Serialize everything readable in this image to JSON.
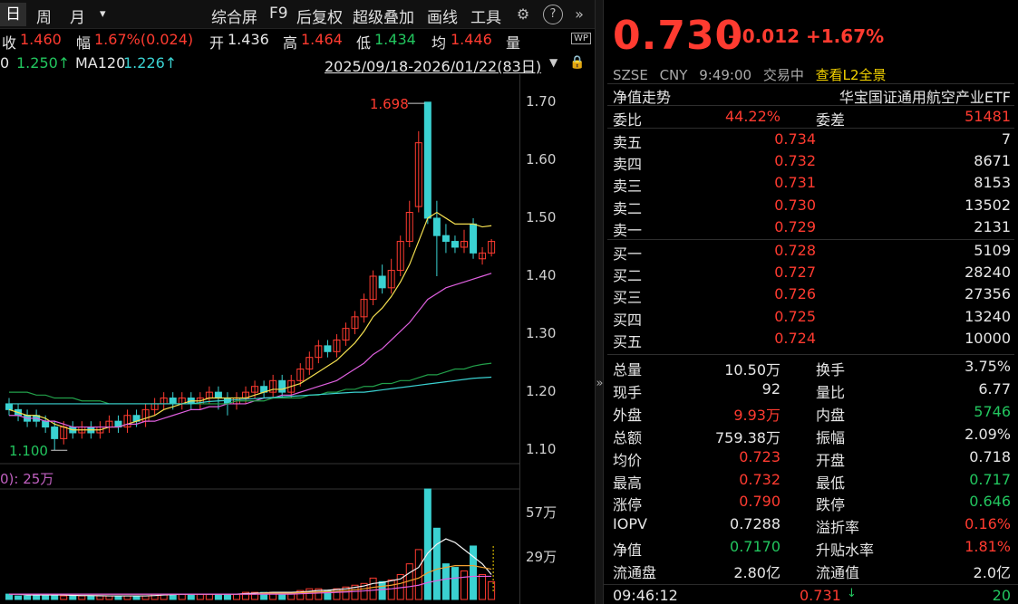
{
  "toolbar": {
    "day": "日",
    "week": "周",
    "month": "月",
    "dropdown": "▾",
    "composite": "综合屏",
    "f9": "F9",
    "adjust": "后复权",
    "overlay": "超级叠加",
    "draw": "画线",
    "tools": "工具",
    "gear_icon": "gear-icon",
    "help_icon": "help-icon",
    "more_icon": "double-chevron-right-icon"
  },
  "quote": {
    "close_label": "收",
    "close": "1.460",
    "range_label": "幅",
    "range": "1.67%(0.024)",
    "open_label": "开",
    "open": "1.436",
    "high_label": "高",
    "high": "1.464",
    "low_label": "低",
    "low": "1.434",
    "avg_label": "均",
    "avg": "1.446",
    "vol_label": "量",
    "wp_badge": "WP"
  },
  "ma": {
    "ma_a_label": "0",
    "ma_a": "1.250↑",
    "ma120_label": "MA120",
    "ma120": "1.226↑",
    "date_range": "2025/09/18-2026/01/22(83日)"
  },
  "chart": {
    "price_high_label": "1.698",
    "price_low_label": "1.100",
    "vol_title": "0): 25万",
    "yticks": [
      "1.70",
      "1.60",
      "1.50",
      "1.40",
      "1.30",
      "1.20",
      "1.10"
    ],
    "vol_ticks": [
      "57万",
      "29万"
    ]
  },
  "chart_data": {
    "type": "candlestick",
    "title": "",
    "ylim": [
      1.08,
      1.72
    ],
    "candles": [
      {
        "o": 1.18,
        "c": 1.17,
        "h": 1.19,
        "l": 1.16
      },
      {
        "o": 1.17,
        "c": 1.16,
        "h": 1.18,
        "l": 1.15
      },
      {
        "o": 1.16,
        "c": 1.15,
        "h": 1.17,
        "l": 1.14
      },
      {
        "o": 1.16,
        "c": 1.15,
        "h": 1.17,
        "l": 1.14
      },
      {
        "o": 1.15,
        "c": 1.14,
        "h": 1.16,
        "l": 1.13
      },
      {
        "o": 1.14,
        "c": 1.12,
        "h": 1.15,
        "l": 1.1
      },
      {
        "o": 1.12,
        "c": 1.14,
        "h": 1.15,
        "l": 1.11
      },
      {
        "o": 1.14,
        "c": 1.13,
        "h": 1.15,
        "l": 1.12
      },
      {
        "o": 1.13,
        "c": 1.14,
        "h": 1.15,
        "l": 1.12
      },
      {
        "o": 1.14,
        "c": 1.13,
        "h": 1.15,
        "l": 1.12
      },
      {
        "o": 1.13,
        "c": 1.14,
        "h": 1.15,
        "l": 1.12
      },
      {
        "o": 1.14,
        "c": 1.15,
        "h": 1.16,
        "l": 1.13
      },
      {
        "o": 1.15,
        "c": 1.14,
        "h": 1.16,
        "l": 1.13
      },
      {
        "o": 1.14,
        "c": 1.16,
        "h": 1.17,
        "l": 1.13
      },
      {
        "o": 1.16,
        "c": 1.15,
        "h": 1.17,
        "l": 1.14
      },
      {
        "o": 1.15,
        "c": 1.17,
        "h": 1.18,
        "l": 1.14
      },
      {
        "o": 1.17,
        "c": 1.18,
        "h": 1.19,
        "l": 1.16
      },
      {
        "o": 1.18,
        "c": 1.19,
        "h": 1.2,
        "l": 1.17
      },
      {
        "o": 1.19,
        "c": 1.18,
        "h": 1.2,
        "l": 1.17
      },
      {
        "o": 1.18,
        "c": 1.19,
        "h": 1.2,
        "l": 1.17
      },
      {
        "o": 1.19,
        "c": 1.18,
        "h": 1.2,
        "l": 1.17
      },
      {
        "o": 1.18,
        "c": 1.19,
        "h": 1.2,
        "l": 1.17
      },
      {
        "o": 1.19,
        "c": 1.2,
        "h": 1.21,
        "l": 1.18
      },
      {
        "o": 1.2,
        "c": 1.19,
        "h": 1.21,
        "l": 1.17
      },
      {
        "o": 1.19,
        "c": 1.18,
        "h": 1.2,
        "l": 1.16
      },
      {
        "o": 1.18,
        "c": 1.19,
        "h": 1.2,
        "l": 1.17
      },
      {
        "o": 1.19,
        "c": 1.2,
        "h": 1.21,
        "l": 1.18
      },
      {
        "o": 1.2,
        "c": 1.21,
        "h": 1.22,
        "l": 1.19
      },
      {
        "o": 1.21,
        "c": 1.2,
        "h": 1.22,
        "l": 1.19
      },
      {
        "o": 1.2,
        "c": 1.22,
        "h": 1.23,
        "l": 1.19
      },
      {
        "o": 1.22,
        "c": 1.2,
        "h": 1.23,
        "l": 1.19
      },
      {
        "o": 1.2,
        "c": 1.22,
        "h": 1.23,
        "l": 1.19
      },
      {
        "o": 1.22,
        "c": 1.24,
        "h": 1.25,
        "l": 1.21
      },
      {
        "o": 1.24,
        "c": 1.26,
        "h": 1.27,
        "l": 1.23
      },
      {
        "o": 1.26,
        "c": 1.28,
        "h": 1.29,
        "l": 1.25
      },
      {
        "o": 1.28,
        "c": 1.27,
        "h": 1.29,
        "l": 1.26
      },
      {
        "o": 1.27,
        "c": 1.29,
        "h": 1.3,
        "l": 1.26
      },
      {
        "o": 1.29,
        "c": 1.31,
        "h": 1.32,
        "l": 1.28
      },
      {
        "o": 1.31,
        "c": 1.33,
        "h": 1.34,
        "l": 1.3
      },
      {
        "o": 1.33,
        "c": 1.36,
        "h": 1.37,
        "l": 1.32
      },
      {
        "o": 1.36,
        "c": 1.4,
        "h": 1.41,
        "l": 1.35
      },
      {
        "o": 1.4,
        "c": 1.38,
        "h": 1.42,
        "l": 1.37
      },
      {
        "o": 1.38,
        "c": 1.41,
        "h": 1.43,
        "l": 1.37
      },
      {
        "o": 1.41,
        "c": 1.46,
        "h": 1.47,
        "l": 1.4
      },
      {
        "o": 1.46,
        "c": 1.51,
        "h": 1.53,
        "l": 1.45
      },
      {
        "o": 1.52,
        "c": 1.63,
        "h": 1.65,
        "l": 1.51
      },
      {
        "o": 1.7,
        "c": 1.5,
        "h": 1.698,
        "l": 1.49
      },
      {
        "o": 1.5,
        "c": 1.47,
        "h": 1.53,
        "l": 1.4
      },
      {
        "o": 1.47,
        "c": 1.46,
        "h": 1.49,
        "l": 1.44
      },
      {
        "o": 1.46,
        "c": 1.45,
        "h": 1.47,
        "l": 1.44
      },
      {
        "o": 1.45,
        "c": 1.46,
        "h": 1.48,
        "l": 1.44
      },
      {
        "o": 1.49,
        "c": 1.44,
        "h": 1.5,
        "l": 1.43
      },
      {
        "o": 1.43,
        "c": 1.44,
        "h": 1.45,
        "l": 1.42
      },
      {
        "o": 1.44,
        "c": 1.46,
        "h": 1.464,
        "l": 1.434
      }
    ],
    "ma_lines": [
      {
        "color": "#f5e050",
        "values": [
          1.17,
          1.165,
          1.16,
          1.16,
          1.155,
          1.145,
          1.14,
          1.135,
          1.135,
          1.135,
          1.135,
          1.14,
          1.14,
          1.145,
          1.15,
          1.155,
          1.16,
          1.17,
          1.175,
          1.18,
          1.185,
          1.185,
          1.19,
          1.19,
          1.19,
          1.19,
          1.19,
          1.195,
          1.2,
          1.205,
          1.205,
          1.21,
          1.215,
          1.225,
          1.235,
          1.245,
          1.255,
          1.27,
          1.285,
          1.305,
          1.33,
          1.345,
          1.365,
          1.39,
          1.42,
          1.46,
          1.5,
          1.51,
          1.5,
          1.49,
          1.49,
          1.49,
          1.485,
          1.487
        ]
      },
      {
        "color": "#e060e0",
        "values": [
          1.16,
          1.16,
          1.155,
          1.155,
          1.15,
          1.15,
          1.145,
          1.14,
          1.14,
          1.14,
          1.14,
          1.14,
          1.14,
          1.145,
          1.145,
          1.15,
          1.15,
          1.155,
          1.16,
          1.165,
          1.17,
          1.17,
          1.175,
          1.175,
          1.18,
          1.18,
          1.18,
          1.185,
          1.19,
          1.19,
          1.195,
          1.195,
          1.2,
          1.205,
          1.21,
          1.215,
          1.22,
          1.23,
          1.24,
          1.25,
          1.265,
          1.275,
          1.29,
          1.305,
          1.32,
          1.34,
          1.36,
          1.37,
          1.38,
          1.385,
          1.39,
          1.395,
          1.4,
          1.405
        ]
      },
      {
        "color": "#22a04a",
        "values": [
          1.2,
          1.2,
          1.2,
          1.195,
          1.195,
          1.19,
          1.19,
          1.19,
          1.185,
          1.185,
          1.185,
          1.18,
          1.18,
          1.18,
          1.18,
          1.18,
          1.18,
          1.18,
          1.18,
          1.18,
          1.18,
          1.18,
          1.18,
          1.18,
          1.18,
          1.185,
          1.185,
          1.185,
          1.185,
          1.19,
          1.19,
          1.19,
          1.19,
          1.195,
          1.195,
          1.2,
          1.2,
          1.205,
          1.205,
          1.21,
          1.21,
          1.215,
          1.215,
          1.22,
          1.22,
          1.225,
          1.23,
          1.23,
          1.235,
          1.24,
          1.24,
          1.245,
          1.248,
          1.25
        ]
      },
      {
        "color": "#3ad1d1",
        "values": [
          1.18,
          1.18,
          1.18,
          1.18,
          1.18,
          1.18,
          1.18,
          1.18,
          1.18,
          1.18,
          1.18,
          1.18,
          1.18,
          1.18,
          1.18,
          1.18,
          1.18,
          1.18,
          1.18,
          1.18,
          1.18,
          1.182,
          1.184,
          1.185,
          1.186,
          1.187,
          1.188,
          1.189,
          1.19,
          1.191,
          1.192,
          1.193,
          1.194,
          1.195,
          1.196,
          1.197,
          1.198,
          1.199,
          1.2,
          1.2,
          1.202,
          1.204,
          1.206,
          1.208,
          1.21,
          1.212,
          1.214,
          1.216,
          1.218,
          1.22,
          1.222,
          1.224,
          1.225,
          1.226
        ]
      }
    ],
    "volumes": [
      3,
      2,
      2,
      3,
      2,
      3,
      2,
      2,
      2,
      2,
      2,
      2,
      2,
      2,
      2,
      2,
      3,
      3,
      3,
      3,
      3,
      3,
      3,
      3,
      3,
      3,
      4,
      4,
      4,
      4,
      4,
      4,
      5,
      6,
      6,
      5,
      6,
      7,
      8,
      9,
      12,
      10,
      11,
      14,
      20,
      28,
      62,
      40,
      20,
      18,
      16,
      30,
      14,
      10
    ],
    "vol_ma": [
      {
        "color": "#f5f5f5",
        "values": [
          3,
          3,
          2.5,
          2.5,
          2.5,
          2.5,
          2.5,
          2.3,
          2.2,
          2.2,
          2.1,
          2,
          2,
          2,
          2,
          2,
          2.2,
          2.5,
          2.7,
          2.9,
          3,
          3,
          3,
          3,
          3,
          3,
          3.3,
          3.5,
          3.7,
          4,
          4,
          4,
          4.2,
          4.6,
          5,
          5.2,
          5.6,
          6,
          6.8,
          7.6,
          9,
          9.5,
          10.5,
          11.5,
          15,
          18,
          26,
          31,
          34,
          32,
          28,
          24,
          20,
          14
        ]
      },
      {
        "color": "#f0a030",
        "values": [
          3,
          3,
          3,
          3,
          3,
          3,
          3,
          3,
          3,
          3,
          3,
          3,
          3,
          3,
          3,
          3,
          3,
          3,
          3,
          3,
          3,
          3,
          3,
          3,
          3,
          3,
          3,
          3,
          3.5,
          3.5,
          3.5,
          3.5,
          3.8,
          4,
          4.2,
          4.4,
          4.6,
          5,
          5.5,
          6,
          6.8,
          7.4,
          8,
          9,
          10.5,
          12,
          15,
          17,
          18,
          19,
          19,
          19,
          18,
          17
        ]
      },
      {
        "color": "#e060e0",
        "values": [
          3,
          3,
          3,
          3,
          3,
          3,
          3,
          3,
          3,
          3,
          3,
          3,
          3,
          3,
          3,
          3,
          3,
          3,
          3,
          3,
          3,
          3,
          3,
          3,
          3,
          3,
          3,
          3,
          3,
          3,
          3,
          3,
          3.2,
          3.4,
          3.6,
          3.8,
          4,
          4.2,
          4.5,
          4.8,
          5.2,
          5.6,
          6,
          6.6,
          7.2,
          8,
          9.5,
          10.5,
          11.5,
          12,
          12.5,
          13,
          13,
          13
        ]
      }
    ],
    "vol_max": 62
  },
  "panel": {
    "price": "0.730",
    "change": "+0.012",
    "change_pct": "+1.67%",
    "exchange": "SZSE",
    "currency": "CNY",
    "time": "9:49:00",
    "status": "交易中",
    "l2_link": "查看L2全景",
    "nav_title": "净值走势",
    "fund_name": "华宝国证通用航空产业ETF",
    "ratio_label": "委比",
    "ratio": "44.22%",
    "diff_label": "委差",
    "diff": "51481",
    "asks": [
      {
        "label": "卖五",
        "price": "0.734",
        "vol": "7"
      },
      {
        "label": "卖四",
        "price": "0.732",
        "vol": "8671"
      },
      {
        "label": "卖三",
        "price": "0.731",
        "vol": "8153"
      },
      {
        "label": "卖二",
        "price": "0.730",
        "vol": "13502"
      },
      {
        "label": "卖一",
        "price": "0.729",
        "vol": "2131"
      }
    ],
    "bids": [
      {
        "label": "买一",
        "price": "0.728",
        "vol": "5109"
      },
      {
        "label": "买二",
        "price": "0.727",
        "vol": "28240"
      },
      {
        "label": "买三",
        "price": "0.726",
        "vol": "27356"
      },
      {
        "label": "买四",
        "price": "0.725",
        "vol": "13240"
      },
      {
        "label": "买五",
        "price": "0.724",
        "vol": "10000"
      }
    ],
    "stats": [
      {
        "l1": "总量",
        "v1": "10.50万",
        "c1": "white",
        "l2": "换手",
        "v2": "3.75%",
        "c2": "white"
      },
      {
        "l1": "现手",
        "v1": "92",
        "c1": "white",
        "l2": "量比",
        "v2": "6.77",
        "c2": "white"
      },
      {
        "l1": "外盘",
        "v1": "9.93万",
        "c1": "red",
        "l2": "内盘",
        "v2": "5746",
        "c2": "green"
      },
      {
        "l1": "总额",
        "v1": "759.38万",
        "c1": "white",
        "l2": "振幅",
        "v2": "2.09%",
        "c2": "white"
      },
      {
        "l1": "均价",
        "v1": "0.723",
        "c1": "red",
        "l2": "开盘",
        "v2": "0.718",
        "c2": "white"
      },
      {
        "l1": "最高",
        "v1": "0.732",
        "c1": "red",
        "l2": "最低",
        "v2": "0.717",
        "c2": "green"
      },
      {
        "l1": "涨停",
        "v1": "0.790",
        "c1": "red",
        "l2": "跌停",
        "v2": "0.646",
        "c2": "green"
      },
      {
        "l1": "IOPV",
        "v1": "0.7288",
        "c1": "white",
        "l2": "溢折率",
        "v2": "0.16%",
        "c2": "red"
      },
      {
        "l1": "净值",
        "v1": "0.7170",
        "c1": "green",
        "l2": "升贴水率",
        "v2": "1.81%",
        "c2": "red"
      },
      {
        "l1": "流通盘",
        "v1": "2.80亿",
        "c1": "white",
        "l2": "流通值",
        "v2": "2.0亿",
        "c2": "white"
      }
    ],
    "last_trade_time": "09:46:12",
    "last_trade_price": "0.731",
    "last_trade_vol": "20",
    "down_arrow": "↓"
  },
  "colors": {
    "up": "#ff3b30",
    "down": "#3ad1d1",
    "green": "#22c55e",
    "accent": "#f5d300"
  }
}
